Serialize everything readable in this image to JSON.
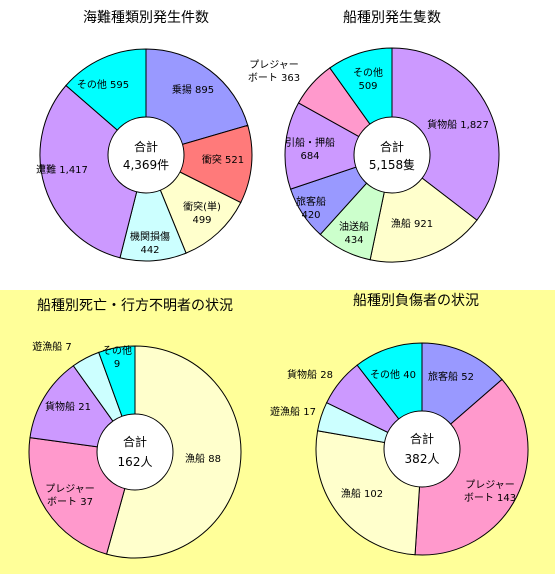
{
  "chart_data": [
    {
      "type": "pie",
      "title": "海難種類別発生件数",
      "total_label": "合計",
      "total_value": "4,369件",
      "slices": [
        {
          "label": "乗揚",
          "value": 895,
          "value_text": "895",
          "color": "#9999ff"
        },
        {
          "label": "衝突",
          "value": 521,
          "value_text": "521",
          "color": "#ff7a7a"
        },
        {
          "label": "衝突(単)",
          "value": 499,
          "value_text": "499",
          "color": "#ffffcc"
        },
        {
          "label": "機関損傷",
          "value": 442,
          "value_text": "442",
          "color": "#ccffff"
        },
        {
          "label": "遭難",
          "value": 1417,
          "value_text": "1,417",
          "color": "#cc99ff"
        },
        {
          "label": "その他",
          "value": 595,
          "value_text": "595",
          "color": "#00ffff"
        }
      ]
    },
    {
      "type": "pie",
      "title": "船種別発生隻数",
      "total_label": "合計",
      "total_value": "5,158隻",
      "slices": [
        {
          "label": "貨物船",
          "value": 1827,
          "value_text": "1,827",
          "color": "#cc99ff"
        },
        {
          "label": "漁船",
          "value": 921,
          "value_text": "921",
          "color": "#ffffcc"
        },
        {
          "label": "油送船",
          "value": 434,
          "value_text": "434",
          "color": "#ccffcc"
        },
        {
          "label": "旅客船",
          "value": 420,
          "value_text": "420",
          "color": "#9999ff"
        },
        {
          "label": "引船・押船",
          "value": 684,
          "value_text": "684",
          "color": "#cc99ff"
        },
        {
          "label": "プレジャーボート",
          "value": 363,
          "value_text": "363",
          "color": "#ff99cc"
        },
        {
          "label": "その他",
          "value": 509,
          "value_text": "509",
          "color": "#00ffff"
        }
      ]
    },
    {
      "type": "pie",
      "title": "船種別死亡・行方不明者の状況",
      "total_label": "合計",
      "total_value": "162人",
      "slices": [
        {
          "label": "漁船",
          "value": 88,
          "value_text": "88",
          "color": "#ffffcc"
        },
        {
          "label": "プレジャーボート",
          "value": 37,
          "value_text": "37",
          "color": "#ff99cc"
        },
        {
          "label": "貨物船",
          "value": 21,
          "value_text": "21",
          "color": "#cc99ff"
        },
        {
          "label": "遊漁船",
          "value": 7,
          "value_text": "7",
          "color": "#ccffff"
        },
        {
          "label": "その他",
          "value": 9,
          "value_text": "9",
          "color": "#00ffff"
        }
      ]
    },
    {
      "type": "pie",
      "title": "船種別負傷者の状況",
      "total_label": "合計",
      "total_value": "382人",
      "slices": [
        {
          "label": "旅客船",
          "value": 52,
          "value_text": "52",
          "color": "#9999ff"
        },
        {
          "label": "プレジャーボート",
          "value": 143,
          "value_text": "143",
          "color": "#ff99cc"
        },
        {
          "label": "漁船",
          "value": 102,
          "value_text": "102",
          "color": "#ffffcc"
        },
        {
          "label": "遊漁船",
          "value": 17,
          "value_text": "17",
          "color": "#ccffff"
        },
        {
          "label": "貨物船",
          "value": 28,
          "value_text": "28",
          "color": "#cc99ff"
        },
        {
          "label": "その他",
          "value": 40,
          "value_text": "40",
          "color": "#00ffff"
        }
      ]
    }
  ]
}
